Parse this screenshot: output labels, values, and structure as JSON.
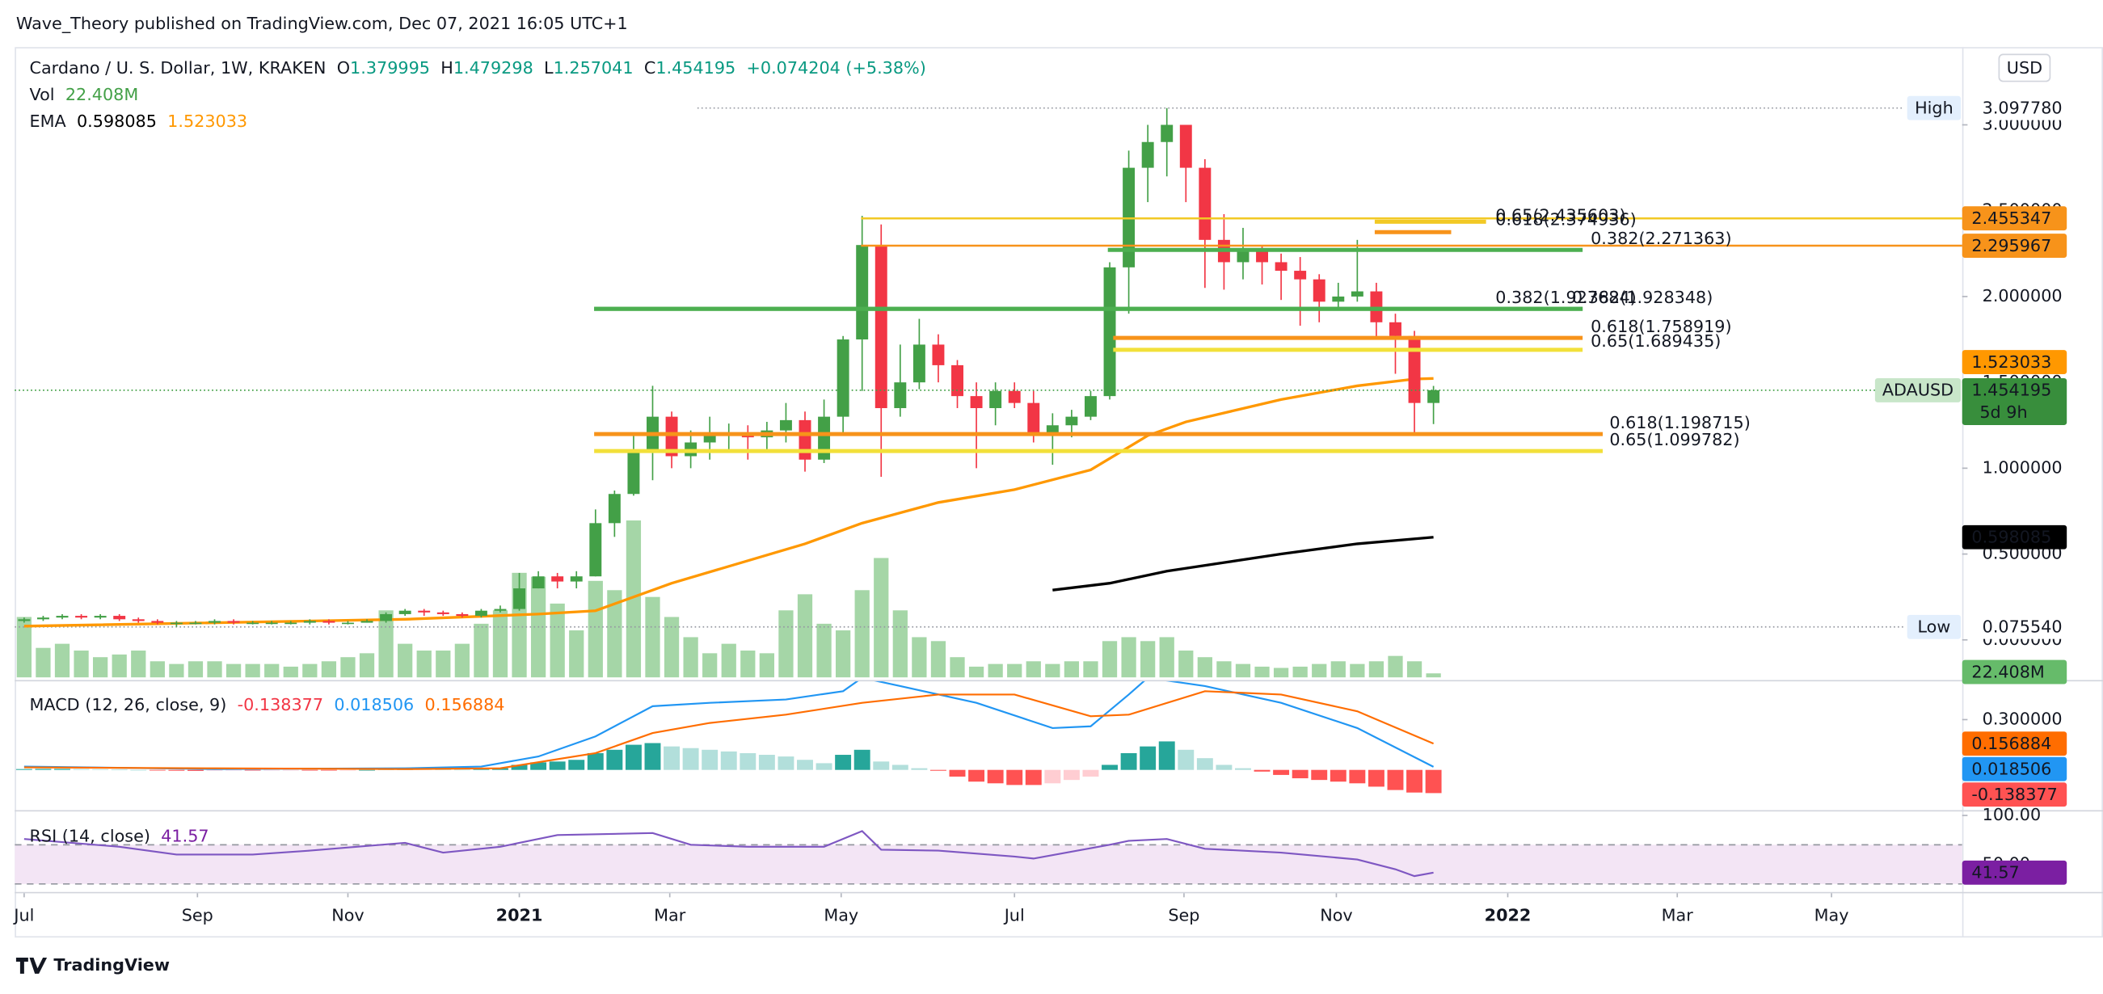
{
  "header": {
    "publisher": "Wave_Theory published on TradingView.com, Dec 07, 2021 16:05 UTC+1"
  },
  "footer": {
    "brand": "TradingView"
  },
  "chart_data": [
    {
      "type": "candlestick",
      "title": "Cardano / U. S. Dollar, 1W, KRAKEN",
      "ohlc_keys": [
        "O",
        "H",
        "L",
        "C"
      ],
      "change": "+0.074204 (+5.38%)",
      "currency": "USD",
      "symbol": "ADAUSD",
      "countdown": "5d 9h",
      "up_color": "#43a047",
      "down_color": "#f23645",
      "open": [
        0.11,
        0.12,
        0.13,
        0.14,
        0.13,
        0.14,
        0.12,
        0.11,
        0.1,
        0.1,
        0.1,
        0.11,
        0.1,
        0.1,
        0.1,
        0.1,
        0.11,
        0.1,
        0.1,
        0.11,
        0.15,
        0.17,
        0.16,
        0.15,
        0.14,
        0.17,
        0.18,
        0.3,
        0.37,
        0.34,
        0.37,
        0.68,
        0.85,
        1.1,
        1.3,
        1.07,
        1.15,
        1.2,
        1.2,
        1.18,
        1.22,
        1.28,
        1.05,
        1.3,
        1.75,
        2.3,
        1.35,
        1.5,
        1.72,
        1.6,
        1.42,
        1.35,
        1.45,
        1.38,
        1.2,
        1.25,
        1.3,
        1.42,
        2.17,
        2.75,
        2.9,
        3.0,
        2.75,
        2.33,
        2.2,
        2.27,
        2.2,
        2.15,
        2.1,
        1.97,
        2.0,
        2.03,
        1.85,
        1.77,
        1.379995
      ],
      "high": [
        0.13,
        0.14,
        0.15,
        0.15,
        0.15,
        0.15,
        0.13,
        0.12,
        0.11,
        0.11,
        0.12,
        0.12,
        0.11,
        0.11,
        0.11,
        0.12,
        0.12,
        0.11,
        0.12,
        0.16,
        0.18,
        0.18,
        0.17,
        0.16,
        0.18,
        0.2,
        0.39,
        0.4,
        0.39,
        0.4,
        0.76,
        0.87,
        1.19,
        1.48,
        1.33,
        1.22,
        1.3,
        1.26,
        1.25,
        1.27,
        1.38,
        1.33,
        1.4,
        1.77,
        2.47,
        2.42,
        1.72,
        1.87,
        1.78,
        1.63,
        1.5,
        1.5,
        1.5,
        1.45,
        1.32,
        1.34,
        1.45,
        2.2,
        2.85,
        3.0,
        3.09778,
        3.0,
        2.8,
        2.48,
        2.4,
        2.3,
        2.25,
        2.23,
        2.13,
        2.08,
        2.33,
        2.08,
        1.9,
        1.8,
        1.479298
      ],
      "low": [
        0.1,
        0.11,
        0.12,
        0.12,
        0.12,
        0.11,
        0.1,
        0.09,
        0.07554,
        0.09,
        0.09,
        0.09,
        0.09,
        0.09,
        0.09,
        0.09,
        0.09,
        0.09,
        0.1,
        0.1,
        0.14,
        0.14,
        0.14,
        0.13,
        0.13,
        0.16,
        0.17,
        0.3,
        0.3,
        0.3,
        0.37,
        0.6,
        0.84,
        0.93,
        1.0,
        1.0,
        1.05,
        1.1,
        1.05,
        1.1,
        1.15,
        0.98,
        1.03,
        1.2,
        1.45,
        0.95,
        1.3,
        1.46,
        1.5,
        1.35,
        1.0,
        1.25,
        1.35,
        1.15,
        1.02,
        1.18,
        1.28,
        1.4,
        1.9,
        2.55,
        2.7,
        2.55,
        2.05,
        2.04,
        2.1,
        2.07,
        1.98,
        1.83,
        1.85,
        1.93,
        1.97,
        1.75,
        1.55,
        1.2,
        1.257041
      ],
      "close": [
        0.12,
        0.13,
        0.14,
        0.13,
        0.14,
        0.12,
        0.11,
        0.1,
        0.1,
        0.1,
        0.11,
        0.1,
        0.1,
        0.1,
        0.1,
        0.11,
        0.1,
        0.1,
        0.11,
        0.15,
        0.17,
        0.16,
        0.15,
        0.14,
        0.17,
        0.18,
        0.3,
        0.37,
        0.34,
        0.37,
        0.68,
        0.85,
        1.1,
        1.3,
        1.07,
        1.15,
        1.2,
        1.2,
        1.18,
        1.22,
        1.28,
        1.05,
        1.3,
        1.75,
        2.3,
        1.35,
        1.5,
        1.72,
        1.6,
        1.42,
        1.35,
        1.45,
        1.38,
        1.2,
        1.25,
        1.3,
        1.42,
        2.17,
        2.75,
        2.9,
        3.0,
        2.75,
        2.33,
        2.2,
        2.27,
        2.2,
        2.15,
        2.1,
        1.97,
        2.0,
        2.03,
        1.85,
        1.77,
        1.38,
        1.454195
      ],
      "volume": {
        "name": "Vol",
        "label": "22.408M",
        "color": "#a5d6a7",
        "tag_color": "#66bb6a",
        "values": [
          338,
          165,
          188,
          150,
          113,
          128,
          150,
          90,
          75,
          90,
          90,
          75,
          75,
          75,
          60,
          75,
          90,
          113,
          135,
          375,
          188,
          150,
          150,
          188,
          300,
          375,
          585,
          563,
          413,
          263,
          540,
          488,
          878,
          450,
          338,
          225,
          135,
          188,
          150,
          135,
          375,
          465,
          300,
          263,
          488,
          668,
          375,
          225,
          203,
          113,
          60,
          75,
          75,
          90,
          75,
          90,
          90,
          203,
          225,
          203,
          225,
          150,
          113,
          90,
          75,
          60,
          53,
          60,
          75,
          90,
          75,
          90,
          120,
          90,
          22.408
        ]
      },
      "ema": {
        "name": "EMA",
        "series": [
          {
            "color": "#000000",
            "x": [
              54,
              57,
              60,
              63,
              66,
              70,
              74
            ],
            "values": [
              0.29,
              0.33,
              0.4,
              0.45,
              0.5,
              0.56,
              0.598085
            ]
          },
          {
            "color": "#ff9800",
            "x": [
              0,
              20,
              27,
              30,
              34,
              41,
              44,
              48,
              52,
              56,
              59,
              61,
              66,
              70,
              73,
              74
            ],
            "values": [
              0.08,
              0.12,
              0.15,
              0.17,
              0.33,
              0.56,
              0.68,
              0.8,
              0.875,
              0.99,
              1.19,
              1.27,
              1.4,
              1.48,
              1.52,
              1.523033
            ]
          }
        ]
      },
      "high_marker": {
        "name": "High",
        "value": 3.09778,
        "label": "3.097780"
      },
      "low_marker": {
        "name": "Low",
        "value": 0.07554,
        "label": "0.075540"
      },
      "levels": [
        {
          "label": "0.65(2.435603)",
          "value": 2.435603,
          "color": "#f2c925"
        },
        {
          "label": "0.618(2.374936)",
          "value": 2.374936,
          "color": "#f7931a"
        },
        {
          "label": "0.382(2.271363)",
          "value": 2.271363,
          "color": "#4caf50"
        },
        {
          "label": "0.382(1.927684)",
          "value": 1.927684,
          "color": "#4caf50"
        },
        {
          "label": "0.382(1.928348)",
          "value": 1.928348,
          "color": "#4caf50"
        },
        {
          "label": "0.618(1.758919)",
          "value": 1.758919,
          "color": "#f7931a"
        },
        {
          "label": "0.65(1.689435)",
          "value": 1.689435,
          "color": "#f2e03a"
        },
        {
          "label": "0.618(1.198715)",
          "value": 1.198715,
          "color": "#f7931a"
        },
        {
          "label": "0.65(1.099782)",
          "value": 1.099782,
          "color": "#f2e03a"
        }
      ],
      "price_lines": [
        {
          "value": 2.455347,
          "color": "#f2c925",
          "tag_color": "#f7931a"
        },
        {
          "value": 2.295967,
          "color": "#f7931a",
          "tag_color": "#f7931a"
        }
      ],
      "xlim": [
        -0.493,
        101.76
      ],
      "xticks": [
        {
          "value": 0,
          "label": "Jul"
        },
        {
          "value": 9.1,
          "label": "Sep"
        },
        {
          "value": 17,
          "label": "Nov"
        },
        {
          "value": 26,
          "label": "2021"
        },
        {
          "value": 33.9,
          "label": "Mar"
        },
        {
          "value": 42.9,
          "label": "May"
        },
        {
          "value": 52,
          "label": "Jul"
        },
        {
          "value": 60.9,
          "label": "Sep"
        },
        {
          "value": 68.9,
          "label": "Nov"
        },
        {
          "value": 77.9,
          "label": "2022"
        },
        {
          "value": 86.8,
          "label": "Mar"
        },
        {
          "value": 94.9,
          "label": "May"
        }
      ],
      "ylim": [
        -0.234,
        3.453
      ],
      "yticks": [
        {
          "value": 0,
          "label": "0.000000"
        },
        {
          "value": 0.5,
          "label": "0.500000"
        },
        {
          "value": 1,
          "label": "1.000000"
        },
        {
          "value": 1.5,
          "label": "1.500000"
        },
        {
          "value": 2,
          "label": "2.000000"
        },
        {
          "value": 2.5,
          "label": "2.500000"
        },
        {
          "value": 3,
          "label": "3.000000"
        }
      ],
      "grid": false
    },
    {
      "type": "macd",
      "title": "MACD (12, 26, close, 9)",
      "histogram": {
        "colors": [
          "#26a69a",
          "#b2dfdb",
          "#ffcdd2",
          "#ff5252"
        ],
        "values": [
          0.005,
          0.006,
          0.006,
          0.005,
          0.004,
          0.002,
          0,
          -0.003,
          -0.005,
          -0.006,
          -0.005,
          -0.004,
          -0.004,
          -0.003,
          -0.002,
          -0.002,
          -0.002,
          -0.001,
          0,
          0.004,
          0.006,
          0.005,
          0.003,
          0.002,
          0.004,
          0.01,
          0.03,
          0.045,
          0.05,
          0.06,
          0.1,
          0.12,
          0.15,
          0.16,
          0.14,
          0.13,
          0.12,
          0.11,
          0.1,
          0.09,
          0.08,
          0.06,
          0.04,
          0.09,
          0.12,
          0.05,
          0.03,
          0.01,
          -0.005,
          -0.04,
          -0.07,
          -0.08,
          -0.09,
          -0.09,
          -0.08,
          -0.06,
          -0.04,
          0.03,
          0.1,
          0.14,
          0.17,
          0.12,
          0.07,
          0.03,
          0.01,
          -0.01,
          -0.03,
          -0.05,
          -0.06,
          -0.07,
          -0.08,
          -0.1,
          -0.12,
          -0.135,
          -0.138377
        ]
      },
      "macd": {
        "color": "#2196f3",
        "x": [
          0,
          10,
          20,
          24,
          27,
          30,
          33,
          36,
          40,
          43,
          44,
          46,
          50,
          54,
          56,
          58,
          59,
          62,
          66,
          70,
          74
        ],
        "values": [
          0.02,
          0.005,
          0.01,
          0.02,
          0.08,
          0.2,
          0.38,
          0.4,
          0.42,
          0.47,
          0.55,
          0.5,
          0.4,
          0.25,
          0.26,
          0.45,
          0.55,
          0.5,
          0.4,
          0.25,
          0.018506
        ]
      },
      "signal": {
        "color": "#ff6d00",
        "x": [
          0,
          10,
          20,
          25,
          30,
          33,
          36,
          40,
          44,
          48,
          52,
          56,
          58,
          62,
          66,
          70,
          74
        ],
        "values": [
          0.015,
          0.01,
          0.005,
          0.01,
          0.1,
          0.22,
          0.28,
          0.33,
          0.4,
          0.45,
          0.45,
          0.32,
          0.33,
          0.47,
          0.45,
          0.35,
          0.156884
        ]
      },
      "ylim": [
        -0.232,
        0.528
      ],
      "yticks": [
        {
          "value": 0.3,
          "label": "0.300000"
        }
      ]
    },
    {
      "type": "rsi",
      "title": "RSI (14, close)",
      "color": "#7e57c2",
      "tag_color": "#7b1fa2",
      "band": [
        30,
        70
      ],
      "band_color": "#f3e5f5",
      "x": [
        0,
        5,
        8,
        12,
        15,
        20,
        22,
        25,
        28,
        33,
        35,
        38,
        42,
        44,
        45,
        48,
        52,
        53,
        57,
        58,
        60,
        62,
        66,
        70,
        72,
        73,
        74
      ],
      "values": [
        76,
        68,
        60,
        60,
        64,
        72,
        62,
        68,
        80,
        82,
        70,
        68,
        68,
        84,
        65,
        64,
        58,
        56,
        70,
        74,
        76,
        66,
        62,
        55,
        45,
        38,
        41.57
      ],
      "ylim": [
        21.8,
        102.7
      ],
      "yticks": [
        {
          "value": 100,
          "label": "100.00"
        },
        {
          "value": 50,
          "label": "50.00"
        }
      ]
    }
  ]
}
